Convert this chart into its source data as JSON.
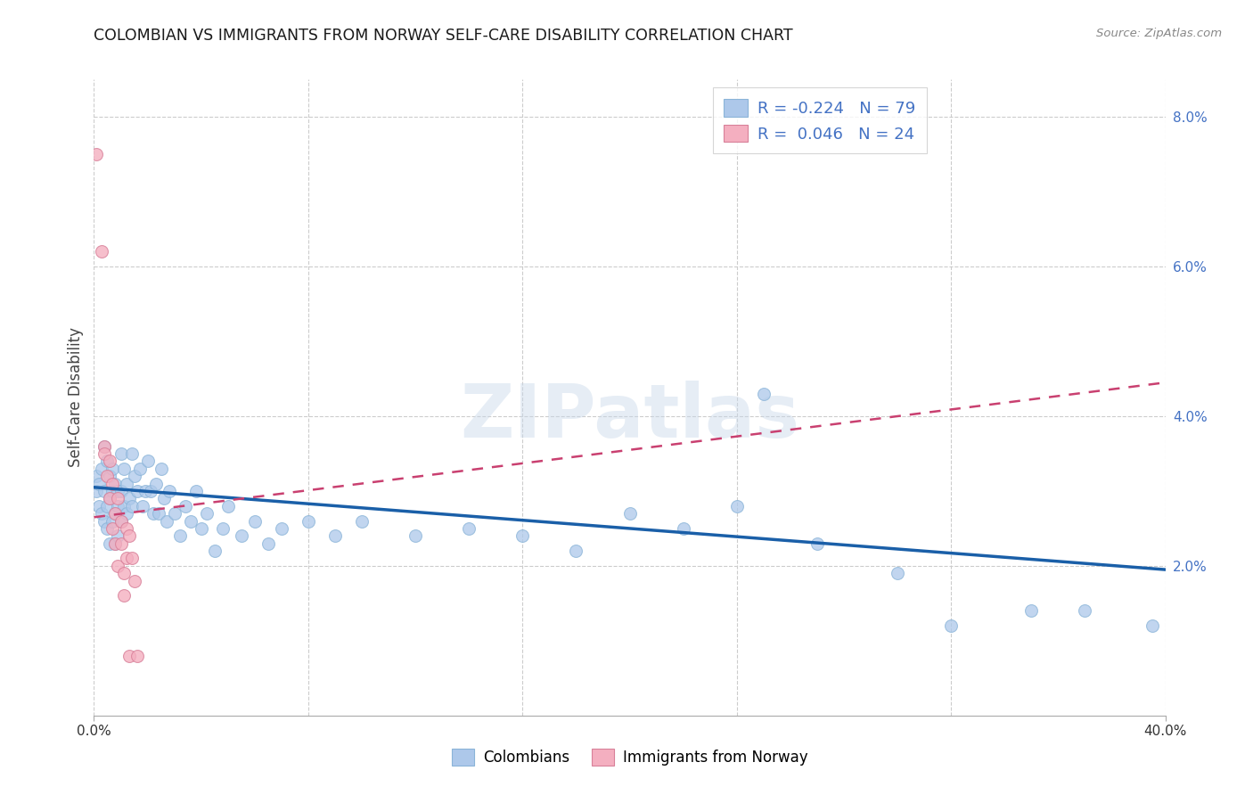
{
  "title": "COLOMBIAN VS IMMIGRANTS FROM NORWAY SELF-CARE DISABILITY CORRELATION CHART",
  "source": "Source: ZipAtlas.com",
  "ylabel": "Self-Care Disability",
  "xlim": [
    0.0,
    0.4
  ],
  "ylim": [
    0.0,
    0.085
  ],
  "yticks_right": [
    0.02,
    0.04,
    0.06,
    0.08
  ],
  "ytick_right_labels": [
    "2.0%",
    "4.0%",
    "6.0%",
    "8.0%"
  ],
  "blue_r": "-0.224",
  "blue_n": "79",
  "pink_r": "0.046",
  "pink_n": "24",
  "colombian_color": "#adc8ea",
  "norway_color": "#f4afc0",
  "blue_line_color": "#1a5fa8",
  "pink_line_color": "#c94070",
  "background_color": "#ffffff",
  "grid_color": "#cccccc",
  "blue_scatter": [
    [
      0.001,
      0.032
    ],
    [
      0.001,
      0.03
    ],
    [
      0.002,
      0.031
    ],
    [
      0.002,
      0.028
    ],
    [
      0.003,
      0.033
    ],
    [
      0.003,
      0.027
    ],
    [
      0.004,
      0.036
    ],
    [
      0.004,
      0.03
    ],
    [
      0.004,
      0.026
    ],
    [
      0.005,
      0.034
    ],
    [
      0.005,
      0.028
    ],
    [
      0.005,
      0.025
    ],
    [
      0.006,
      0.032
    ],
    [
      0.006,
      0.029
    ],
    [
      0.006,
      0.023
    ],
    [
      0.007,
      0.033
    ],
    [
      0.007,
      0.03
    ],
    [
      0.007,
      0.026
    ],
    [
      0.008,
      0.031
    ],
    [
      0.008,
      0.027
    ],
    [
      0.008,
      0.023
    ],
    [
      0.009,
      0.03
    ],
    [
      0.009,
      0.028
    ],
    [
      0.009,
      0.024
    ],
    [
      0.01,
      0.035
    ],
    [
      0.01,
      0.03
    ],
    [
      0.01,
      0.026
    ],
    [
      0.011,
      0.033
    ],
    [
      0.011,
      0.028
    ],
    [
      0.012,
      0.031
    ],
    [
      0.012,
      0.027
    ],
    [
      0.013,
      0.029
    ],
    [
      0.014,
      0.035
    ],
    [
      0.014,
      0.028
    ],
    [
      0.015,
      0.032
    ],
    [
      0.016,
      0.03
    ],
    [
      0.017,
      0.033
    ],
    [
      0.018,
      0.028
    ],
    [
      0.019,
      0.03
    ],
    [
      0.02,
      0.034
    ],
    [
      0.021,
      0.03
    ],
    [
      0.022,
      0.027
    ],
    [
      0.023,
      0.031
    ],
    [
      0.024,
      0.027
    ],
    [
      0.025,
      0.033
    ],
    [
      0.026,
      0.029
    ],
    [
      0.027,
      0.026
    ],
    [
      0.028,
      0.03
    ],
    [
      0.03,
      0.027
    ],
    [
      0.032,
      0.024
    ],
    [
      0.034,
      0.028
    ],
    [
      0.036,
      0.026
    ],
    [
      0.038,
      0.03
    ],
    [
      0.04,
      0.025
    ],
    [
      0.042,
      0.027
    ],
    [
      0.045,
      0.022
    ],
    [
      0.048,
      0.025
    ],
    [
      0.05,
      0.028
    ],
    [
      0.055,
      0.024
    ],
    [
      0.06,
      0.026
    ],
    [
      0.065,
      0.023
    ],
    [
      0.07,
      0.025
    ],
    [
      0.08,
      0.026
    ],
    [
      0.09,
      0.024
    ],
    [
      0.1,
      0.026
    ],
    [
      0.12,
      0.024
    ],
    [
      0.14,
      0.025
    ],
    [
      0.16,
      0.024
    ],
    [
      0.18,
      0.022
    ],
    [
      0.2,
      0.027
    ],
    [
      0.22,
      0.025
    ],
    [
      0.24,
      0.028
    ],
    [
      0.25,
      0.043
    ],
    [
      0.27,
      0.023
    ],
    [
      0.3,
      0.019
    ],
    [
      0.32,
      0.012
    ],
    [
      0.35,
      0.014
    ],
    [
      0.37,
      0.014
    ],
    [
      0.395,
      0.012
    ]
  ],
  "pink_scatter": [
    [
      0.001,
      0.075
    ],
    [
      0.003,
      0.062
    ],
    [
      0.004,
      0.036
    ],
    [
      0.004,
      0.035
    ],
    [
      0.005,
      0.032
    ],
    [
      0.006,
      0.034
    ],
    [
      0.006,
      0.029
    ],
    [
      0.007,
      0.031
    ],
    [
      0.007,
      0.025
    ],
    [
      0.008,
      0.027
    ],
    [
      0.008,
      0.023
    ],
    [
      0.009,
      0.029
    ],
    [
      0.009,
      0.02
    ],
    [
      0.01,
      0.026
    ],
    [
      0.01,
      0.023
    ],
    [
      0.011,
      0.019
    ],
    [
      0.011,
      0.016
    ],
    [
      0.012,
      0.025
    ],
    [
      0.012,
      0.021
    ],
    [
      0.013,
      0.024
    ],
    [
      0.013,
      0.008
    ],
    [
      0.014,
      0.021
    ],
    [
      0.015,
      0.018
    ],
    [
      0.016,
      0.008
    ]
  ],
  "blue_line_x": [
    0.0,
    0.4
  ],
  "blue_line_y": [
    0.0305,
    0.0195
  ],
  "pink_line_x": [
    0.0,
    0.4
  ],
  "pink_line_y": [
    0.0265,
    0.0445
  ]
}
